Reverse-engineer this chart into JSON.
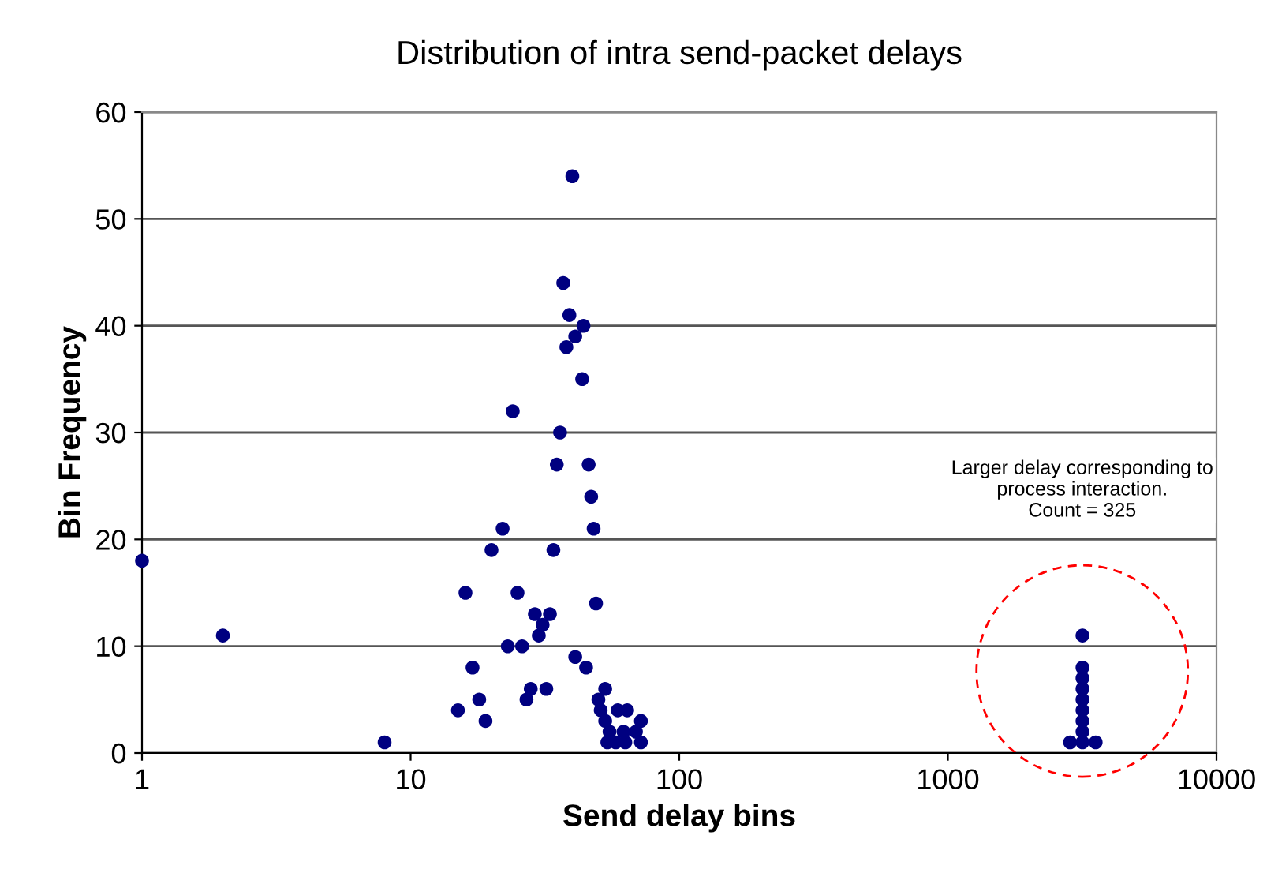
{
  "chart_data": {
    "type": "scatter",
    "title": "Distribution of intra send-packet delays",
    "xlabel": "Send delay bins",
    "ylabel": "Bin Frequency",
    "log": "x",
    "xlim": [
      1,
      10000
    ],
    "xticks": [
      1,
      10,
      100,
      1000,
      10000
    ],
    "ylim": [
      0,
      60
    ],
    "yticks": [
      0,
      10,
      20,
      30,
      40,
      50,
      60
    ],
    "grid": "y",
    "marker": "circle",
    "series": [
      {
        "color": "#000080",
        "x": [
          1,
          2,
          8,
          40,
          37,
          39,
          38,
          41,
          44,
          43.5,
          24,
          36,
          35,
          46,
          47,
          48,
          22,
          20,
          34,
          16,
          25,
          49,
          29,
          33,
          31,
          30,
          23,
          26,
          41,
          45,
          17,
          28,
          32,
          53,
          18,
          27,
          50,
          15,
          51,
          59,
          64,
          19,
          53,
          72,
          55,
          62,
          69,
          54,
          58,
          63,
          72,
          3170,
          3170,
          3170,
          3170,
          3170,
          3170,
          3170,
          3170,
          3170,
          2850,
          3550
        ],
        "values": [
          18,
          11,
          1,
          54,
          44,
          41,
          38,
          39,
          40,
          35,
          32,
          30,
          27,
          27,
          24,
          21,
          21,
          19,
          19,
          15,
          15,
          14,
          13,
          13,
          12,
          11,
          10,
          10,
          9,
          8,
          8,
          6,
          6,
          6,
          5,
          5,
          5,
          4,
          4,
          4,
          4,
          3,
          3,
          3,
          2,
          2,
          2,
          1,
          1,
          1,
          1,
          11,
          8,
          7,
          6,
          5,
          4,
          3,
          2,
          1,
          1,
          1
        ]
      }
    ],
    "annotations": [
      "Larger delay corresponding to\nprocess interaction.\nCount = 325"
    ]
  }
}
